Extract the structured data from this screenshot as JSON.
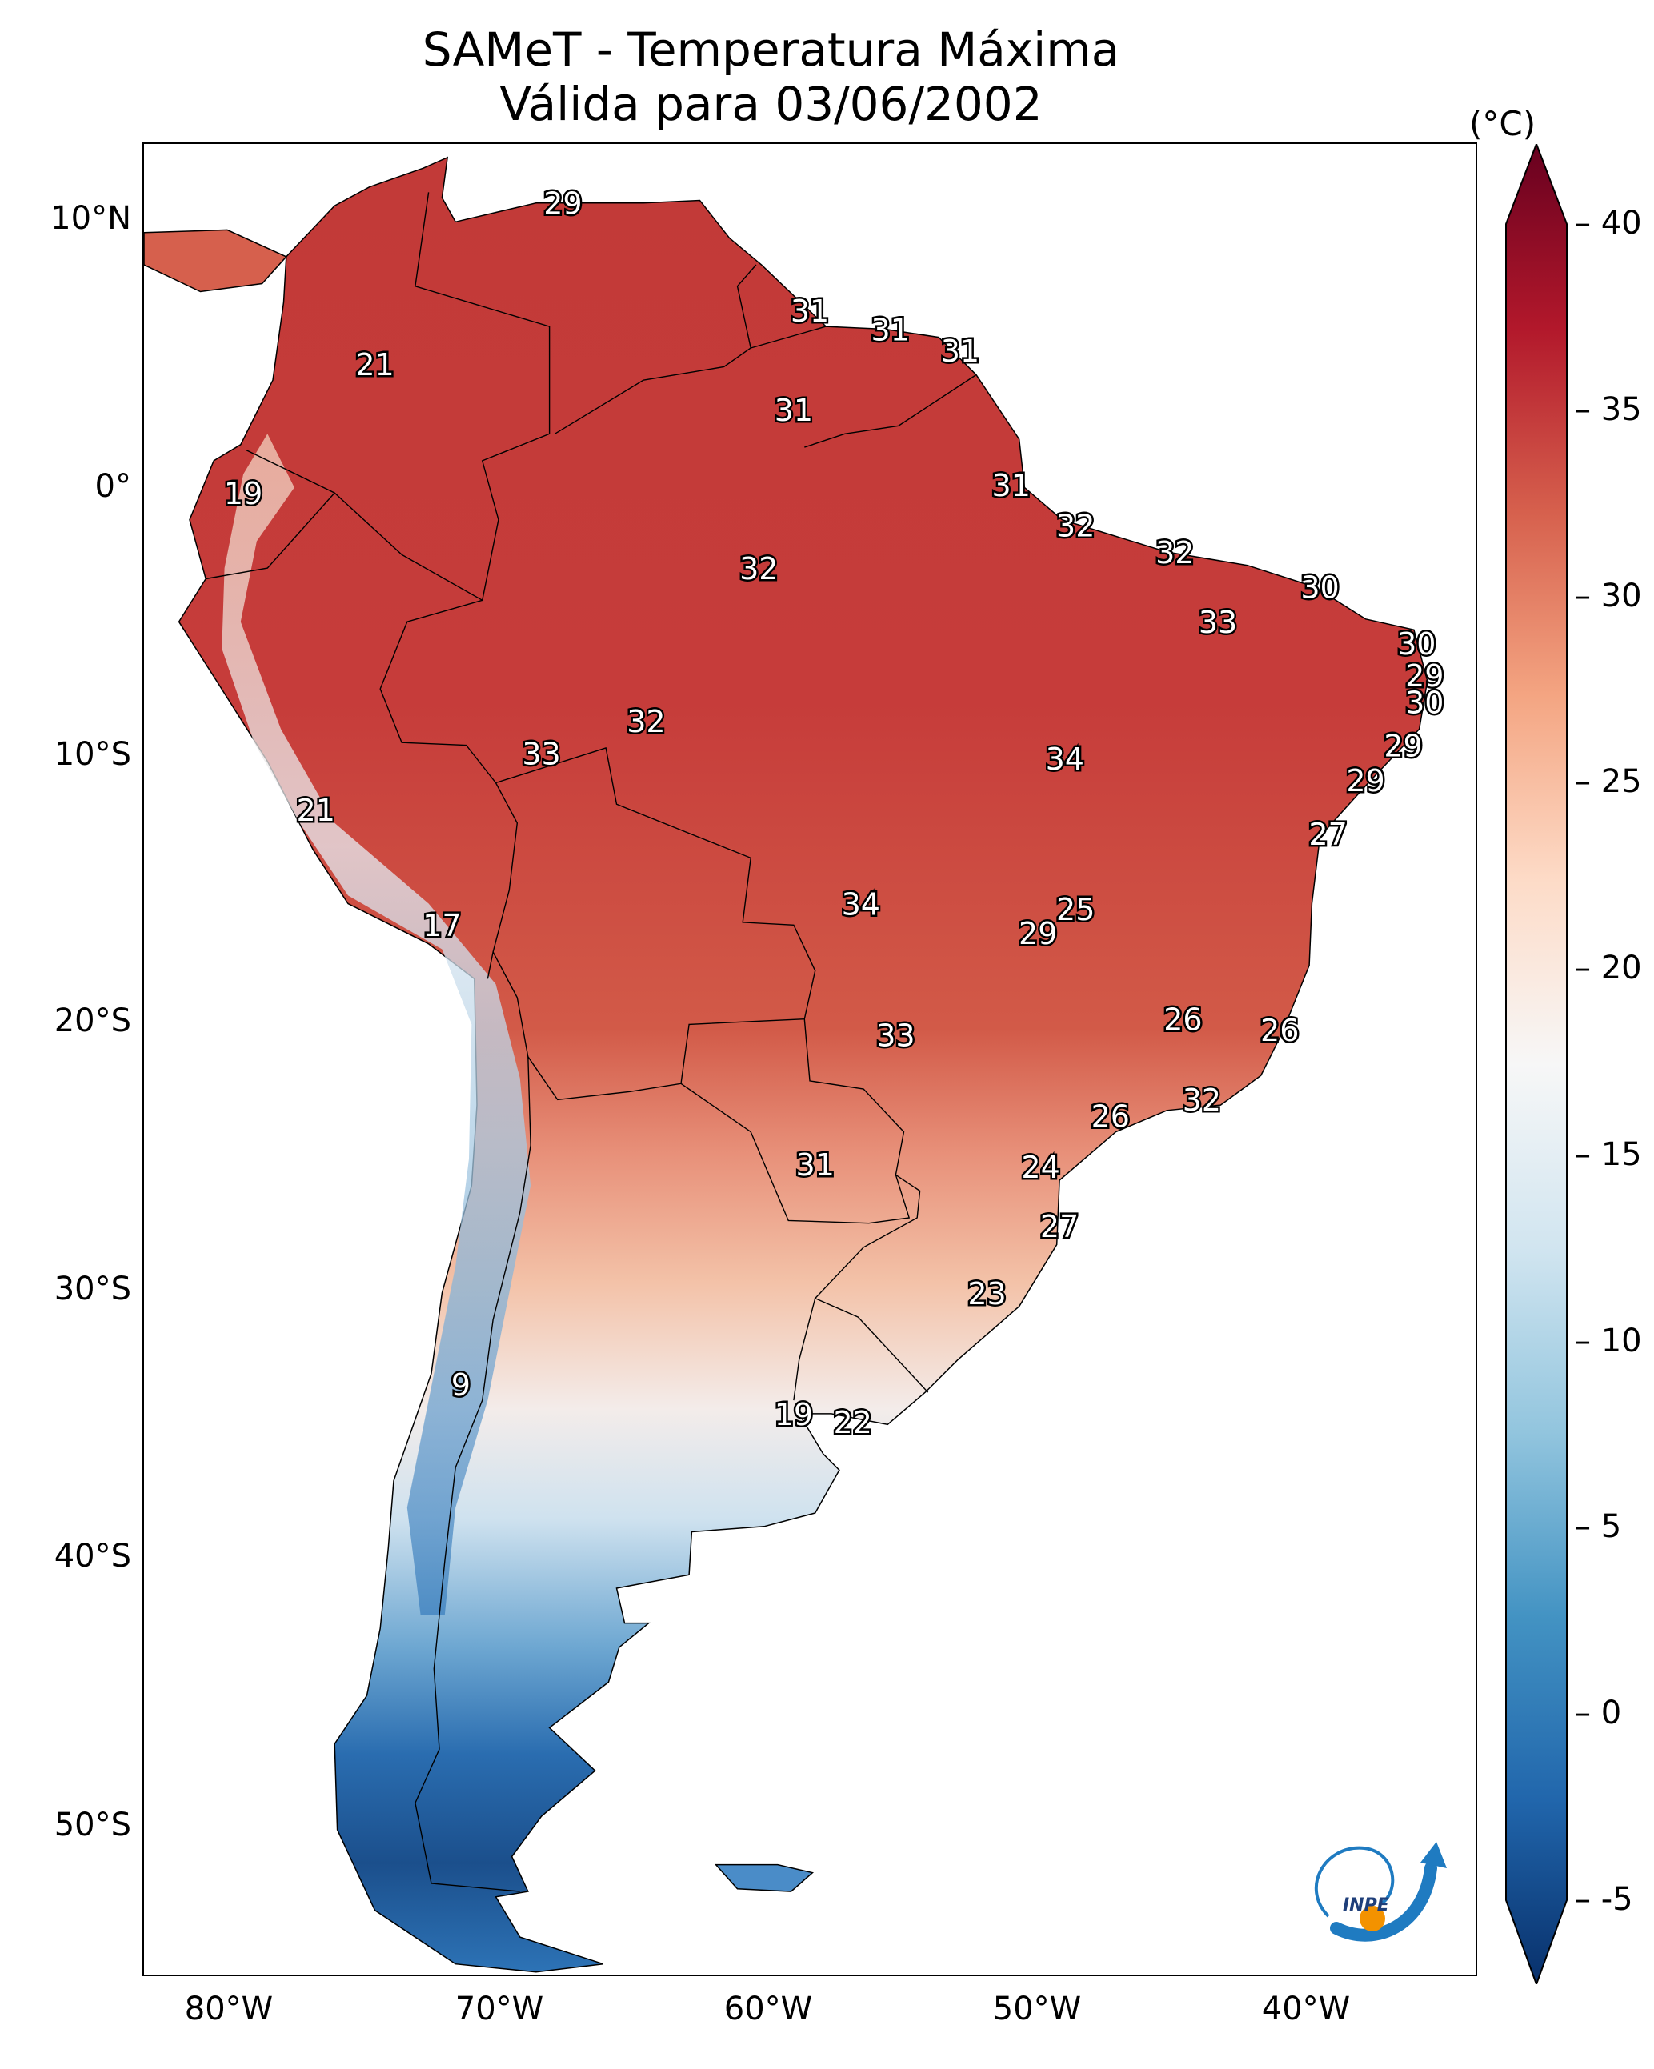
{
  "title": {
    "line1": "SAMeT - Temperatura Máxima",
    "line2": "Válida para 03/06/2002"
  },
  "lat_labels": [
    "10°N",
    "0°",
    "10°S",
    "20°S",
    "30°S",
    "40°S",
    "50°S"
  ],
  "lon_labels": [
    "80°W",
    "70°W",
    "60°W",
    "50°W",
    "40°W"
  ],
  "colorbar": {
    "unit": "(°C)",
    "ticks": [
      "40",
      "35",
      "30",
      "25",
      "20",
      "15",
      "10",
      "5",
      "0",
      "-5"
    ],
    "min": -5,
    "max": 40,
    "colors": [
      "#08306b",
      "#2166ac",
      "#4393c3",
      "#92c5de",
      "#d1e5f0",
      "#f7f7f7",
      "#fddbc7",
      "#f4a582",
      "#d6604d",
      "#b2182b",
      "#67001f"
    ]
  },
  "station_values": [
    {
      "lon": -67,
      "lat": 10.5,
      "value": "29"
    },
    {
      "lon": -74,
      "lat": 4.5,
      "value": "21"
    },
    {
      "lon": -57.8,
      "lat": 6.5,
      "value": "31"
    },
    {
      "lon": -54.8,
      "lat": 5.8,
      "value": "31"
    },
    {
      "lon": -52.2,
      "lat": 5,
      "value": "31"
    },
    {
      "lon": -58.4,
      "lat": 2.8,
      "value": "31"
    },
    {
      "lon": -78.9,
      "lat": -0.3,
      "value": "19"
    },
    {
      "lon": -50.3,
      "lat": 0,
      "value": "31"
    },
    {
      "lon": -47.9,
      "lat": -1.5,
      "value": "32"
    },
    {
      "lon": -44.2,
      "lat": -2.5,
      "value": "32"
    },
    {
      "lon": -59.7,
      "lat": -3.1,
      "value": "32"
    },
    {
      "lon": -38.8,
      "lat": -3.8,
      "value": "30"
    },
    {
      "lon": -42.6,
      "lat": -5.1,
      "value": "33"
    },
    {
      "lon": -35.2,
      "lat": -5.9,
      "value": "30"
    },
    {
      "lon": -34.9,
      "lat": -7.1,
      "value": "29"
    },
    {
      "lon": -34.9,
      "lat": -8.1,
      "value": "30"
    },
    {
      "lon": -63.9,
      "lat": -8.8,
      "value": "32"
    },
    {
      "lon": -67.8,
      "lat": -10,
      "value": "33"
    },
    {
      "lon": -48.3,
      "lat": -10.2,
      "value": "34"
    },
    {
      "lon": -35.7,
      "lat": -9.7,
      "value": "29"
    },
    {
      "lon": -37.1,
      "lat": -11,
      "value": "29"
    },
    {
      "lon": -76.2,
      "lat": -12.1,
      "value": "21"
    },
    {
      "lon": -38.5,
      "lat": -13,
      "value": "27"
    },
    {
      "lon": -55.9,
      "lat": -15.6,
      "value": "34"
    },
    {
      "lon": -47.9,
      "lat": -15.8,
      "value": "25"
    },
    {
      "lon": -49.3,
      "lat": -16.7,
      "value": "29"
    },
    {
      "lon": -71.5,
      "lat": -16.4,
      "value": "17"
    },
    {
      "lon": -43.9,
      "lat": -19.9,
      "value": "26"
    },
    {
      "lon": -40.3,
      "lat": -20.3,
      "value": "26"
    },
    {
      "lon": -54.6,
      "lat": -20.5,
      "value": "33"
    },
    {
      "lon": -43.2,
      "lat": -22.9,
      "value": "32"
    },
    {
      "lon": -46.6,
      "lat": -23.5,
      "value": "26"
    },
    {
      "lon": -57.6,
      "lat": -25.3,
      "value": "31"
    },
    {
      "lon": -49.2,
      "lat": -25.4,
      "value": "24"
    },
    {
      "lon": -48.5,
      "lat": -27.6,
      "value": "27"
    },
    {
      "lon": -51.2,
      "lat": -30.1,
      "value": "23"
    },
    {
      "lon": -70.8,
      "lat": -33.5,
      "value": "9"
    },
    {
      "lon": -58.4,
      "lat": -34.6,
      "value": "19"
    },
    {
      "lon": -56.2,
      "lat": -34.9,
      "value": "22"
    }
  ]
}
